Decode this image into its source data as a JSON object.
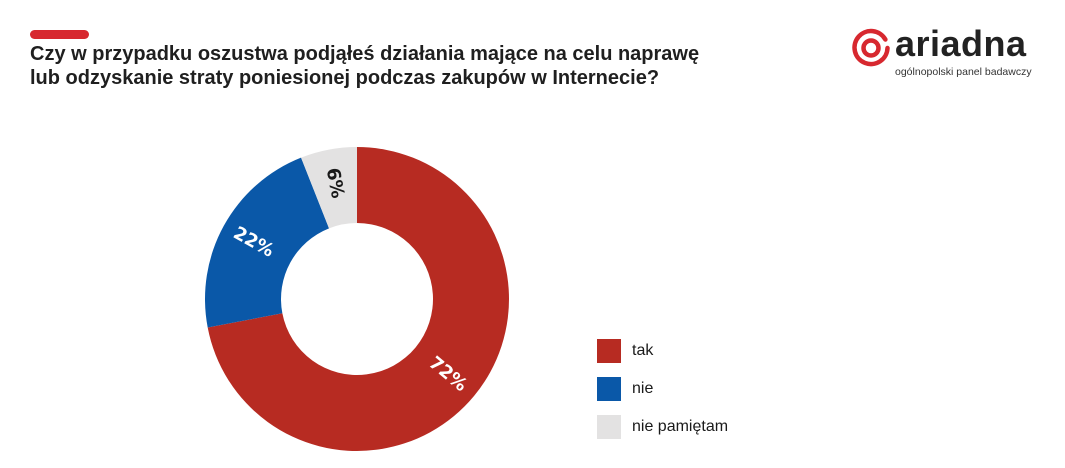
{
  "header": {
    "accent_color": "#d7282f",
    "title_line1": "Czy w przypadku oszustwa podjąłeś działania mające na celu naprawę",
    "title_line2": "lub odzyskanie straty poniesionej podczas zakupów w Internecie?"
  },
  "logo": {
    "name": "ariadna",
    "tagline": "ogólnopolski panel badawczy",
    "brand_color": "#d7282f",
    "icon": "ariadna-logo-icon"
  },
  "chart_data": {
    "type": "pie",
    "style": "donut",
    "start": "top",
    "direction": "clockwise",
    "legend_position": "bottom-right",
    "slices": [
      {
        "name": "tak",
        "value": 72,
        "label": "72%",
        "color": "#b72b22",
        "label_color": "#ffffff"
      },
      {
        "name": "nie",
        "value": 22,
        "label": "22%",
        "color": "#0a58a8",
        "label_color": "#ffffff"
      },
      {
        "name": "nie pamiętam",
        "value": 6,
        "label": "6%",
        "color": "#e3e2e2",
        "label_color": "#1a1a1a"
      }
    ]
  }
}
